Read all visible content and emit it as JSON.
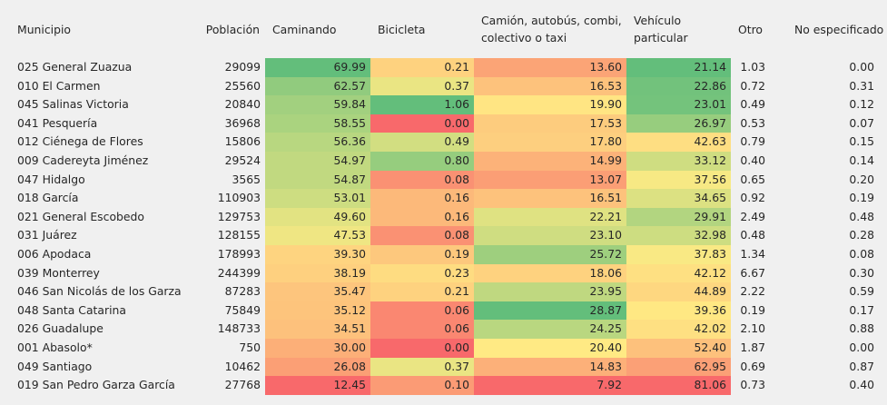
{
  "columns": {
    "municipio": "Municipio",
    "poblacion": "Población",
    "caminando": "Caminando",
    "bicicleta": "Bicicleta",
    "camion": "Camión, autobús, combi, colectivo o taxi",
    "vehiculo": "Vehículo particular",
    "otro": "Otro",
    "no_especificado": "No especificado"
  },
  "rows": [
    {
      "municipio": "025 General Zuazua",
      "poblacion": "29099",
      "caminando": "69.99",
      "bicicleta": "0.21",
      "camion": "13.60",
      "vehiculo": "21.14",
      "otro": "1.03",
      "no_especificado": "0.00"
    },
    {
      "municipio": "010 El Carmen",
      "poblacion": "25560",
      "caminando": "62.57",
      "bicicleta": "0.37",
      "camion": "16.53",
      "vehiculo": "22.86",
      "otro": "0.72",
      "no_especificado": "0.31"
    },
    {
      "municipio": "045 Salinas Victoria",
      "poblacion": "20840",
      "caminando": "59.84",
      "bicicleta": "1.06",
      "camion": "19.90",
      "vehiculo": "23.01",
      "otro": "0.49",
      "no_especificado": "0.12"
    },
    {
      "municipio": "041 Pesquería",
      "poblacion": "36968",
      "caminando": "58.55",
      "bicicleta": "0.00",
      "camion": "17.53",
      "vehiculo": "26.97",
      "otro": "0.53",
      "no_especificado": "0.07"
    },
    {
      "municipio": "012 Ciénega de Flores",
      "poblacion": "15806",
      "caminando": "56.36",
      "bicicleta": "0.49",
      "camion": "17.80",
      "vehiculo": "42.63",
      "otro": "0.79",
      "no_especificado": "0.15"
    },
    {
      "municipio": "009 Cadereyta Jiménez",
      "poblacion": "29524",
      "caminando": "54.97",
      "bicicleta": "0.80",
      "camion": "14.99",
      "vehiculo": "33.12",
      "otro": "0.40",
      "no_especificado": "0.14"
    },
    {
      "municipio": "047 Hidalgo",
      "poblacion": "3565",
      "caminando": "54.87",
      "bicicleta": "0.08",
      "camion": "13.07",
      "vehiculo": "37.56",
      "otro": "0.65",
      "no_especificado": "0.20"
    },
    {
      "municipio": "018 García",
      "poblacion": "110903",
      "caminando": "53.01",
      "bicicleta": "0.16",
      "camion": "16.51",
      "vehiculo": "34.65",
      "otro": "0.92",
      "no_especificado": "0.19"
    },
    {
      "municipio": "021 General Escobedo",
      "poblacion": "129753",
      "caminando": "49.60",
      "bicicleta": "0.16",
      "camion": "22.21",
      "vehiculo": "29.91",
      "otro": "2.49",
      "no_especificado": "0.48"
    },
    {
      "municipio": "031 Juárez",
      "poblacion": "128155",
      "caminando": "47.53",
      "bicicleta": "0.08",
      "camion": "23.10",
      "vehiculo": "32.98",
      "otro": "0.48",
      "no_especificado": "0.28"
    },
    {
      "municipio": "006 Apodaca",
      "poblacion": "178993",
      "caminando": "39.30",
      "bicicleta": "0.19",
      "camion": "25.72",
      "vehiculo": "37.83",
      "otro": "1.34",
      "no_especificado": "0.08"
    },
    {
      "municipio": "039 Monterrey",
      "poblacion": "244399",
      "caminando": "38.19",
      "bicicleta": "0.23",
      "camion": "18.06",
      "vehiculo": "42.12",
      "otro": "6.67",
      "no_especificado": "0.30"
    },
    {
      "municipio": "046 San Nicolás de los Garza",
      "poblacion": "87283",
      "caminando": "35.47",
      "bicicleta": "0.21",
      "camion": "23.95",
      "vehiculo": "44.89",
      "otro": "2.22",
      "no_especificado": "0.59"
    },
    {
      "municipio": "048 Santa Catarina",
      "poblacion": "75849",
      "caminando": "35.12",
      "bicicleta": "0.06",
      "camion": "28.87",
      "vehiculo": "39.36",
      "otro": "0.19",
      "no_especificado": "0.17"
    },
    {
      "municipio": "026 Guadalupe",
      "poblacion": "148733",
      "caminando": "34.51",
      "bicicleta": "0.06",
      "camion": "24.25",
      "vehiculo": "42.02",
      "otro": "2.10",
      "no_especificado": "0.88"
    },
    {
      "municipio": "001 Abasolo*",
      "poblacion": "750",
      "caminando": "30.00",
      "bicicleta": "0.00",
      "camion": "20.40",
      "vehiculo": "52.40",
      "otro": "1.87",
      "no_especificado": "0.00"
    },
    {
      "municipio": "049 Santiago",
      "poblacion": "10462",
      "caminando": "26.08",
      "bicicleta": "0.37",
      "camion": "14.83",
      "vehiculo": "62.95",
      "otro": "0.69",
      "no_especificado": "0.87"
    },
    {
      "municipio": "019 San Pedro Garza García",
      "poblacion": "27768",
      "caminando": "12.45",
      "bicicleta": "0.10",
      "camion": "7.92",
      "vehiculo": "81.06",
      "otro": "0.73",
      "no_especificado": "0.40"
    }
  ],
  "color_scales": {
    "caminando": {
      "min": 12.45,
      "mid": 45.0,
      "max": 69.99,
      "low_color": "#f8696b",
      "mid_color": "#ffeb84",
      "high_color": "#63be7b"
    },
    "bicicleta": {
      "min": 0.0,
      "mid": 0.26,
      "max": 1.06,
      "low_color": "#f8696b",
      "mid_color": "#ffeb84",
      "high_color": "#63be7b"
    },
    "camion": {
      "min": 7.92,
      "mid": 20.5,
      "max": 28.87,
      "low_color": "#f8696b",
      "mid_color": "#ffeb84",
      "high_color": "#63be7b"
    },
    "vehiculo": {
      "min": 21.14,
      "mid": 38.5,
      "max": 81.06,
      "low_color": "#63be7b",
      "mid_color": "#ffeb84",
      "high_color": "#f8696b"
    }
  }
}
